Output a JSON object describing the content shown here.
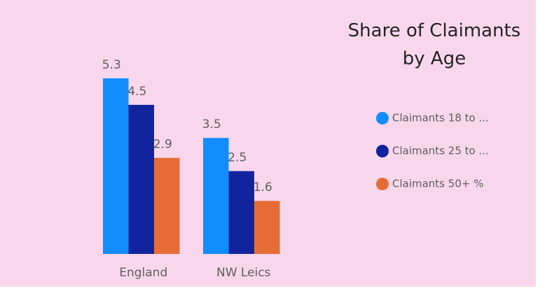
{
  "chart_data": {
    "type": "bar",
    "title": "Share of Claimants by Age",
    "categories": [
      "England",
      "NW Leics"
    ],
    "series": [
      {
        "name": "Claimants 18 to ...",
        "color": "#118dff",
        "values": [
          5.3,
          3.5
        ]
      },
      {
        "name": "Claimants 25 to ...",
        "color": "#12239e",
        "values": [
          4.5,
          2.5
        ]
      },
      {
        "name": "Claimants 50+ %",
        "color": "#e66c37",
        "values": [
          2.9,
          1.6
        ]
      }
    ],
    "legend": "right"
  }
}
